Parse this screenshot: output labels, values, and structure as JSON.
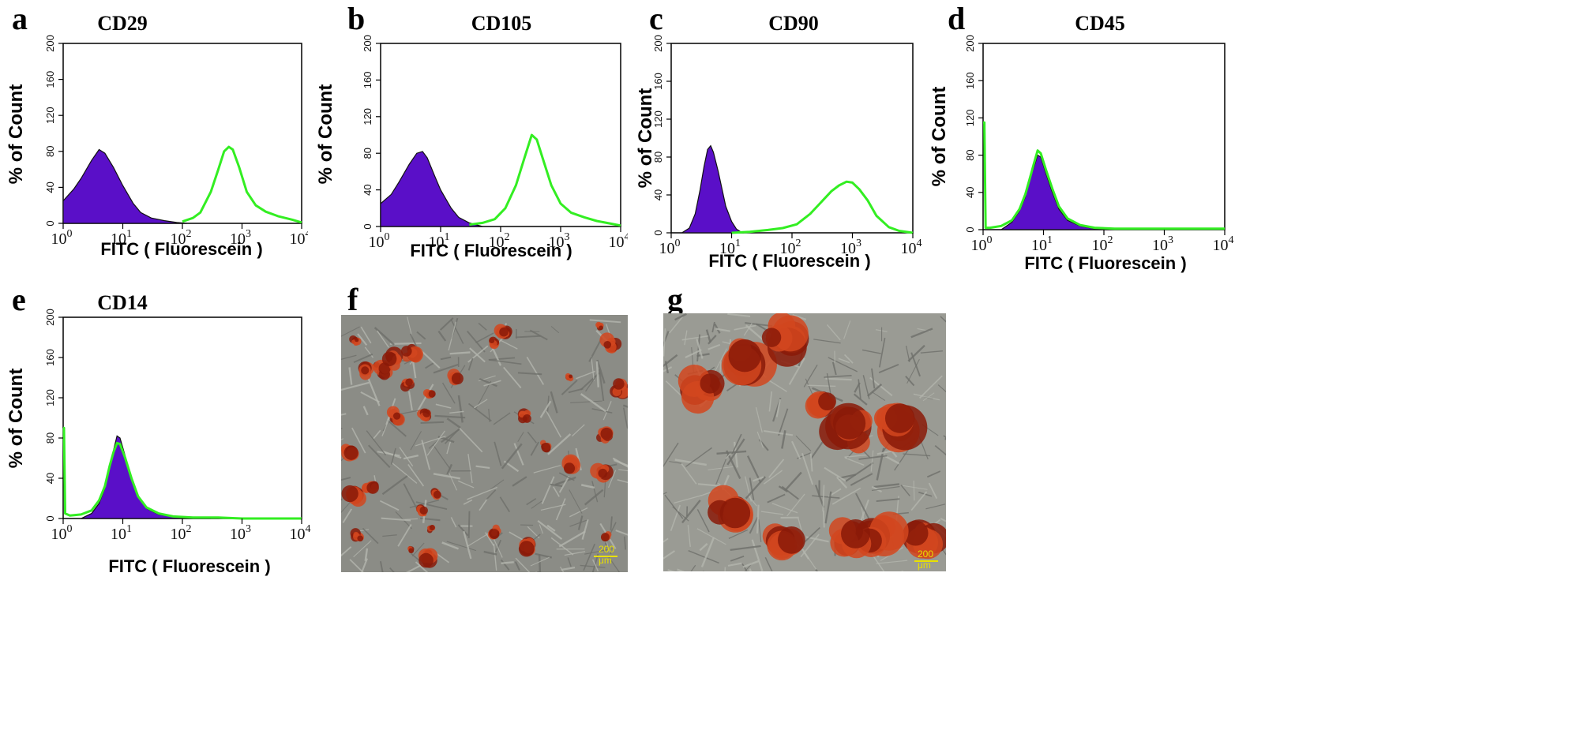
{
  "panels": [
    {
      "letter": "a",
      "title": "CD29"
    },
    {
      "letter": "b",
      "title": "CD105"
    },
    {
      "letter": "c",
      "title": "CD90"
    },
    {
      "letter": "d",
      "title": "CD45"
    },
    {
      "letter": "e",
      "title": "CD14"
    },
    {
      "letter": "f"
    },
    {
      "letter": "g"
    }
  ],
  "colors": {
    "isotype_fill": "#5a0fc8",
    "marker_line": "#33ee22",
    "stain": "#d2461e"
  },
  "scale_bar": {
    "f": "200 μm",
    "g": "200 μm"
  },
  "chart_data": [
    {
      "type": "area",
      "title": "CD29",
      "xlabel": "FITC ( Fluorescein )",
      "ylabel": "% of Count",
      "xscale": "log",
      "xlim": [
        1,
        10000
      ],
      "ylim": [
        0,
        200
      ],
      "xticks": [
        1,
        10,
        100,
        1000,
        10000
      ],
      "yticks": [
        0,
        40,
        80,
        120,
        160,
        200
      ],
      "series": [
        {
          "kind": "filled",
          "x": [
            1,
            1.5,
            2,
            3,
            4,
            5,
            7,
            10,
            15,
            20,
            30,
            50,
            80,
            120
          ],
          "y": [
            25,
            38,
            50,
            70,
            82,
            78,
            62,
            42,
            22,
            12,
            6,
            3,
            1,
            0
          ]
        },
        {
          "kind": "line",
          "x": [
            100,
            150,
            200,
            300,
            400,
            500,
            600,
            700,
            900,
            1200,
            1700,
            2500,
            4000,
            7000,
            10000
          ],
          "y": [
            2,
            6,
            12,
            35,
            60,
            80,
            85,
            82,
            62,
            35,
            20,
            13,
            8,
            4,
            1
          ]
        }
      ]
    },
    {
      "type": "area",
      "title": "CD105",
      "xlabel": "FITC ( Fluorescein )",
      "ylabel": "% of Count",
      "xscale": "log",
      "xlim": [
        1,
        10000
      ],
      "ylim": [
        0,
        200
      ],
      "xticks": [
        1,
        10,
        100,
        1000,
        10000
      ],
      "yticks": [
        0,
        40,
        80,
        120,
        160,
        200
      ],
      "series": [
        {
          "kind": "filled",
          "x": [
            1,
            1.5,
            2,
            3,
            4,
            5,
            6,
            8,
            10,
            15,
            20,
            30,
            50
          ],
          "y": [
            25,
            35,
            48,
            68,
            80,
            82,
            75,
            55,
            40,
            20,
            10,
            4,
            0
          ]
        },
        {
          "kind": "line",
          "x": [
            30,
            50,
            80,
            120,
            180,
            250,
            330,
            400,
            500,
            700,
            1000,
            1500,
            2500,
            4000,
            7000,
            10000
          ],
          "y": [
            2,
            4,
            8,
            20,
            45,
            75,
            100,
            95,
            75,
            45,
            25,
            15,
            10,
            6,
            3,
            1
          ]
        }
      ]
    },
    {
      "type": "area",
      "title": "CD90",
      "xlabel": "FITC ( Fluorescein )",
      "ylabel": "% of Count",
      "xscale": "log",
      "xlim": [
        1,
        10000
      ],
      "ylim": [
        0,
        200
      ],
      "xticks": [
        1,
        10,
        100,
        1000,
        10000
      ],
      "yticks": [
        0,
        40,
        80,
        120,
        160,
        200
      ],
      "series": [
        {
          "kind": "filled",
          "x": [
            1.5,
            2,
            2.5,
            3,
            3.5,
            4,
            4.5,
            5,
            6,
            7,
            8,
            10,
            12,
            15
          ],
          "y": [
            0,
            5,
            20,
            45,
            70,
            88,
            92,
            85,
            65,
            45,
            28,
            12,
            4,
            0
          ]
        },
        {
          "kind": "line",
          "x": [
            10,
            20,
            40,
            70,
            120,
            200,
            300,
            450,
            600,
            800,
            1000,
            1300,
            1800,
            2500,
            4000,
            6000,
            10000
          ],
          "y": [
            0,
            1,
            3,
            5,
            9,
            20,
            32,
            44,
            50,
            54,
            53,
            46,
            34,
            18,
            6,
            2,
            0
          ]
        }
      ]
    },
    {
      "type": "area",
      "title": "CD45",
      "xlabel": "FITC ( Fluorescein )",
      "ylabel": "% of Count",
      "xscale": "log",
      "xlim": [
        1,
        10000
      ],
      "ylim": [
        0,
        200
      ],
      "xticks": [
        1,
        10,
        100,
        1000,
        10000
      ],
      "yticks": [
        0,
        40,
        80,
        120,
        160,
        200
      ],
      "series": [
        {
          "kind": "filled",
          "x": [
            2,
            3,
            4,
            5,
            6,
            7,
            8,
            9,
            11,
            14,
            18,
            25,
            40,
            70,
            120
          ],
          "y": [
            0,
            8,
            20,
            35,
            55,
            68,
            80,
            78,
            60,
            40,
            22,
            10,
            4,
            1,
            0
          ]
        },
        {
          "kind": "line",
          "x": [
            1,
            1.05,
            1.1,
            1.3,
            2,
            3,
            4,
            5,
            6,
            7,
            8,
            9,
            11,
            14,
            18,
            25,
            40,
            70,
            150,
            400,
            1000,
            3000,
            10000
          ],
          "y": [
            115,
            115,
            2,
            2,
            4,
            10,
            22,
            38,
            56,
            72,
            85,
            82,
            64,
            44,
            25,
            12,
            5,
            2,
            1,
            1,
            1,
            1,
            1
          ]
        }
      ]
    },
    {
      "type": "area",
      "title": "CD14",
      "xlabel": "FITC ( Fluorescein )",
      "ylabel": "% of Count",
      "xscale": "log",
      "xlim": [
        1,
        10000
      ],
      "ylim": [
        0,
        200
      ],
      "xticks": [
        1,
        10,
        100,
        1000,
        10000
      ],
      "yticks": [
        0,
        40,
        80,
        120,
        160,
        200
      ],
      "series": [
        {
          "kind": "filled",
          "x": [
            2,
            3,
            4,
            5,
            6,
            7,
            8,
            9,
            11,
            14,
            18,
            25,
            40,
            70,
            150,
            300
          ],
          "y": [
            0,
            5,
            15,
            30,
            50,
            68,
            82,
            80,
            62,
            40,
            22,
            10,
            4,
            2,
            1,
            0
          ]
        },
        {
          "kind": "line",
          "x": [
            1,
            1.03,
            1.08,
            1.3,
            2,
            3,
            4,
            5,
            6,
            7,
            8,
            9,
            11,
            14,
            18,
            25,
            40,
            70,
            150,
            400,
            1000,
            3000,
            10000
          ],
          "y": [
            90,
            90,
            5,
            3,
            4,
            8,
            18,
            32,
            52,
            66,
            75,
            74,
            60,
            40,
            22,
            11,
            5,
            2,
            1,
            1,
            0,
            0,
            0
          ]
        }
      ]
    }
  ]
}
